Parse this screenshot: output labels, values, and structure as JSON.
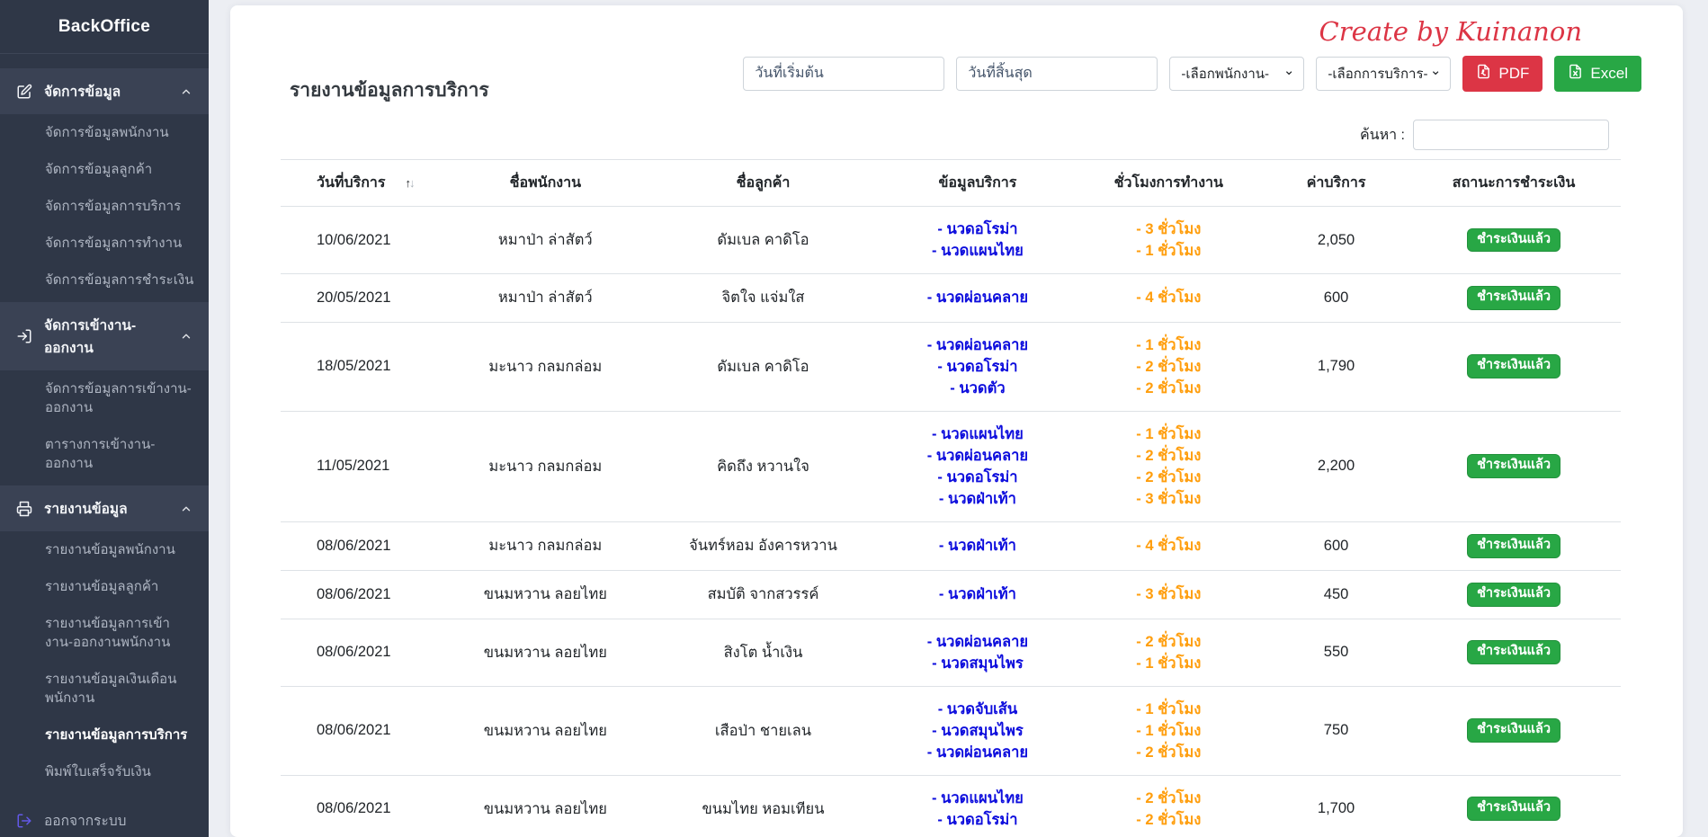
{
  "credit": "Create by Kuinanon",
  "sidebar": {
    "brand": "BackOffice",
    "sections": [
      {
        "label": "จัดการข้อมูล",
        "icon": "edit-icon",
        "items": [
          "จัดการข้อมูลพนักงาน",
          "จัดการข้อมูลลูกค้า",
          "จัดการข้อมูลการบริการ",
          "จัดการข้อมูลการทำงาน",
          "จัดการข้อมูลการชำระเงิน"
        ]
      },
      {
        "label": "จัดการเข้างาน-ออกงาน",
        "icon": "sign-in-icon",
        "items": [
          "จัดการข้อมูลการเข้างาน-ออกงาน",
          "ตารางการเข้างาน-ออกงาน"
        ]
      },
      {
        "label": "รายงานข้อมูล",
        "icon": "printer-icon",
        "items": [
          "รายงานข้อมูลพนักงาน",
          "รายงานข้อมูลลูกค้า",
          "รายงานข้อมูลการเข้างาน-ออกงานพนักงาน",
          "รายงานข้อมูลเงินเดือนพนักงาน",
          "รายงานข้อมูลการบริการ",
          "พิมพ์ใบเสร็จรับเงิน"
        ]
      }
    ],
    "active_item": "รายงานข้อมูลการบริการ",
    "logout_label": "ออกจากระบบ",
    "logout_icon": "sign-out-icon",
    "caret_icon": "chevron-up-icon"
  },
  "header": {
    "title": "รายงานข้อมูลการบริการ",
    "filters": {
      "start_date_placeholder": "วันที่เริ่มต้น",
      "end_date_placeholder": "วันที่สิ้นสุด",
      "employee_select_value": "-เลือกพนักงาน-",
      "service_select_value": "-เลือกการบริการ-"
    },
    "buttons": {
      "pdf_label": "PDF",
      "pdf_icon": "file-pdf-icon",
      "excel_label": "Excel",
      "excel_icon": "file-excel-icon"
    },
    "search_label": "ค้นหา :",
    "search_value": ""
  },
  "table": {
    "columns": [
      "วันที่บริการ",
      "ชื่อพนักงาน",
      "ชื่อลูกค้า",
      "ข้อมูลบริการ",
      "ชั่วโมงการทำงาน",
      "ค่าบริการ",
      "สถานะการชำระเงิน"
    ],
    "sort_icon": "sort-arrows-icon",
    "rows": [
      {
        "date": "10/06/2021",
        "employee": "หมาป่า ล่าสัตว์",
        "customer": "ดัมเบล คาดิโอ",
        "services": [
          "- นวดอโรม่า",
          "- นวดแผนไทย"
        ],
        "hours": [
          "- 3 ชั่วโมง",
          "- 1 ชั่วโมง"
        ],
        "price": "2,050",
        "status": "ชำระเงินแล้ว"
      },
      {
        "date": "20/05/2021",
        "employee": "หมาป่า ล่าสัตว์",
        "customer": "จิตใจ แจ่มใส",
        "services": [
          "- นวดผ่อนคลาย"
        ],
        "hours": [
          "- 4 ชั่วโมง"
        ],
        "price": "600",
        "status": "ชำระเงินแล้ว"
      },
      {
        "date": "18/05/2021",
        "employee": "มะนาว กลมกล่อม",
        "customer": "ดัมเบล คาดิโอ",
        "services": [
          "- นวดผ่อนคลาย",
          "- นวดอโรม่า",
          "- นวดตัว"
        ],
        "hours": [
          "- 1 ชั่วโมง",
          "- 2 ชั่วโมง",
          "- 2 ชั่วโมง"
        ],
        "price": "1,790",
        "status": "ชำระเงินแล้ว"
      },
      {
        "date": "11/05/2021",
        "employee": "มะนาว กลมกล่อม",
        "customer": "คิดถึง หวานใจ",
        "services": [
          "- นวดแผนไทย",
          "- นวดผ่อนคลาย",
          "- นวดอโรม่า",
          "- นวดฝ่าเท้า"
        ],
        "hours": [
          "- 1 ชั่วโมง",
          "- 2 ชั่วโมง",
          "- 2 ชั่วโมง",
          "- 3 ชั่วโมง"
        ],
        "price": "2,200",
        "status": "ชำระเงินแล้ว"
      },
      {
        "date": "08/06/2021",
        "employee": "มะนาว กลมกล่อม",
        "customer": "จันทร์หอม อังคารหวาน",
        "services": [
          "- นวดฝ่าเท้า"
        ],
        "hours": [
          "- 4 ชั่วโมง"
        ],
        "price": "600",
        "status": "ชำระเงินแล้ว"
      },
      {
        "date": "08/06/2021",
        "employee": "ขนมหวาน ลอยไทย",
        "customer": "สมบัติ จากสวรรค์",
        "services": [
          "- นวดฝ่าเท้า"
        ],
        "hours": [
          "- 3 ชั่วโมง"
        ],
        "price": "450",
        "status": "ชำระเงินแล้ว"
      },
      {
        "date": "08/06/2021",
        "employee": "ขนมหวาน ลอยไทย",
        "customer": "สิงโต น้ำเงิน",
        "services": [
          "- นวดผ่อนคลาย",
          "- นวดสมุนไพร"
        ],
        "hours": [
          "- 2 ชั่วโมง",
          "- 1 ชั่วโมง"
        ],
        "price": "550",
        "status": "ชำระเงินแล้ว"
      },
      {
        "date": "08/06/2021",
        "employee": "ขนมหวาน ลอยไทย",
        "customer": "เสือป่า ชายเลน",
        "services": [
          "- นวดจับเส้น",
          "- นวดสมุนไพร",
          "- นวดผ่อนคลาย"
        ],
        "hours": [
          "- 1 ชั่วโมง",
          "- 1 ชั่วโมง",
          "- 2 ชั่วโมง"
        ],
        "price": "750",
        "status": "ชำระเงินแล้ว"
      },
      {
        "date": "08/06/2021",
        "employee": "ขนมหวาน ลอยไทย",
        "customer": "ขนมไทย หอมเทียน",
        "services": [
          "- นวดแผนไทย",
          "- นวดอโรม่า"
        ],
        "hours": [
          "- 2 ชั่วโมง",
          "- 2 ชั่วโมง"
        ],
        "price": "1,700",
        "status": "ชำระเงินแล้ว"
      }
    ]
  },
  "colors": {
    "sidebar_bg": "#2f3747",
    "sidebar_section_bg": "#3a4254",
    "service_text_blue": "#0d0ddd",
    "hours_text_orange": "#ff9e0d",
    "status_badge_green": "#28a745",
    "pdf_button_red": "#dc3545",
    "excel_button_green": "#28a745",
    "credit_red": "#dc3545",
    "logout_icon_purple": "#6358e8"
  }
}
